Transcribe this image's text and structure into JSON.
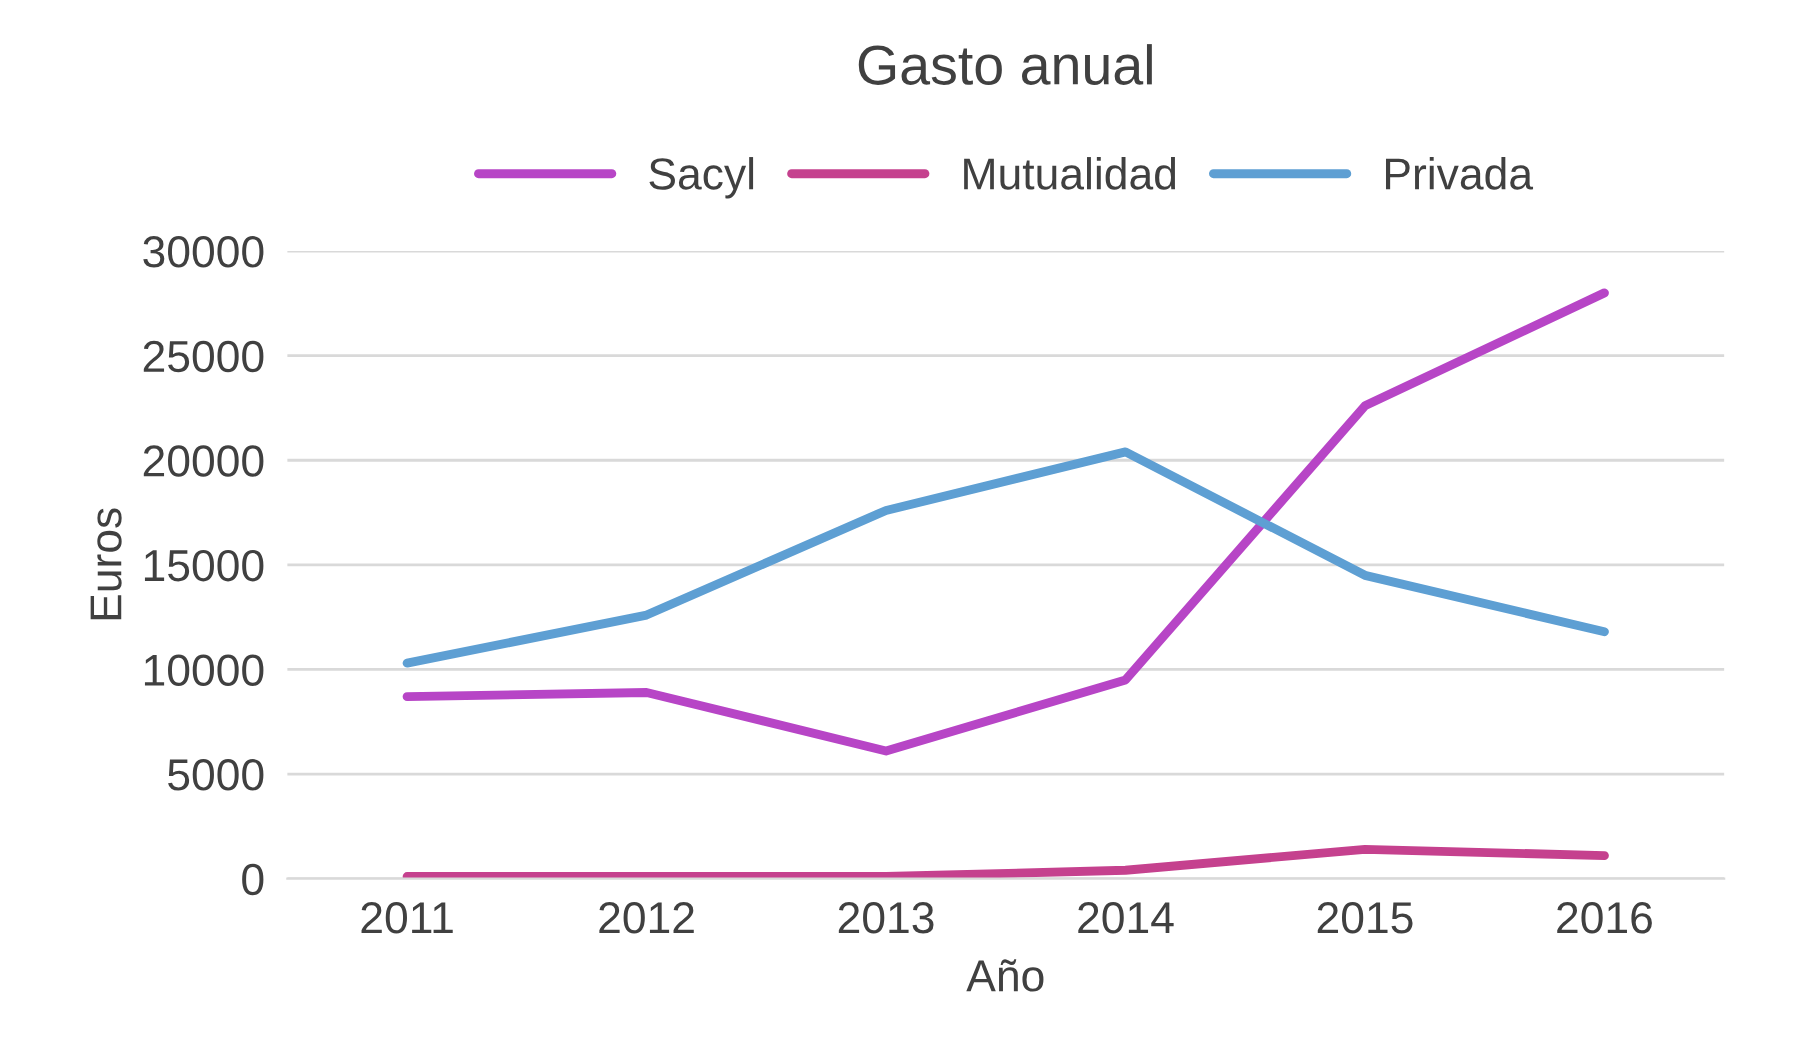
{
  "chart_data": {
    "type": "line",
    "title": "Gasto anual",
    "xlabel": "Año",
    "ylabel": "Euros",
    "categories": [
      "2011",
      "2012",
      "2013",
      "2014",
      "2015",
      "2016"
    ],
    "series": [
      {
        "name": "Sacyl",
        "color": "#b745c6",
        "values": [
          8700,
          8900,
          6100,
          9500,
          22600,
          28000
        ]
      },
      {
        "name": "Mutualidad",
        "color": "#c5418e",
        "values": [
          100,
          100,
          100,
          400,
          1400,
          1100
        ]
      },
      {
        "name": "Privada",
        "color": "#5e9fd3",
        "values": [
          10300,
          12600,
          17600,
          20400,
          14500,
          11800
        ]
      }
    ],
    "ylim": [
      0,
      30000
    ],
    "yticks": [
      0,
      5000,
      10000,
      15000,
      20000,
      25000,
      30000
    ],
    "grid": "y",
    "legend": "top",
    "marker": "none",
    "line_style": "solid"
  }
}
